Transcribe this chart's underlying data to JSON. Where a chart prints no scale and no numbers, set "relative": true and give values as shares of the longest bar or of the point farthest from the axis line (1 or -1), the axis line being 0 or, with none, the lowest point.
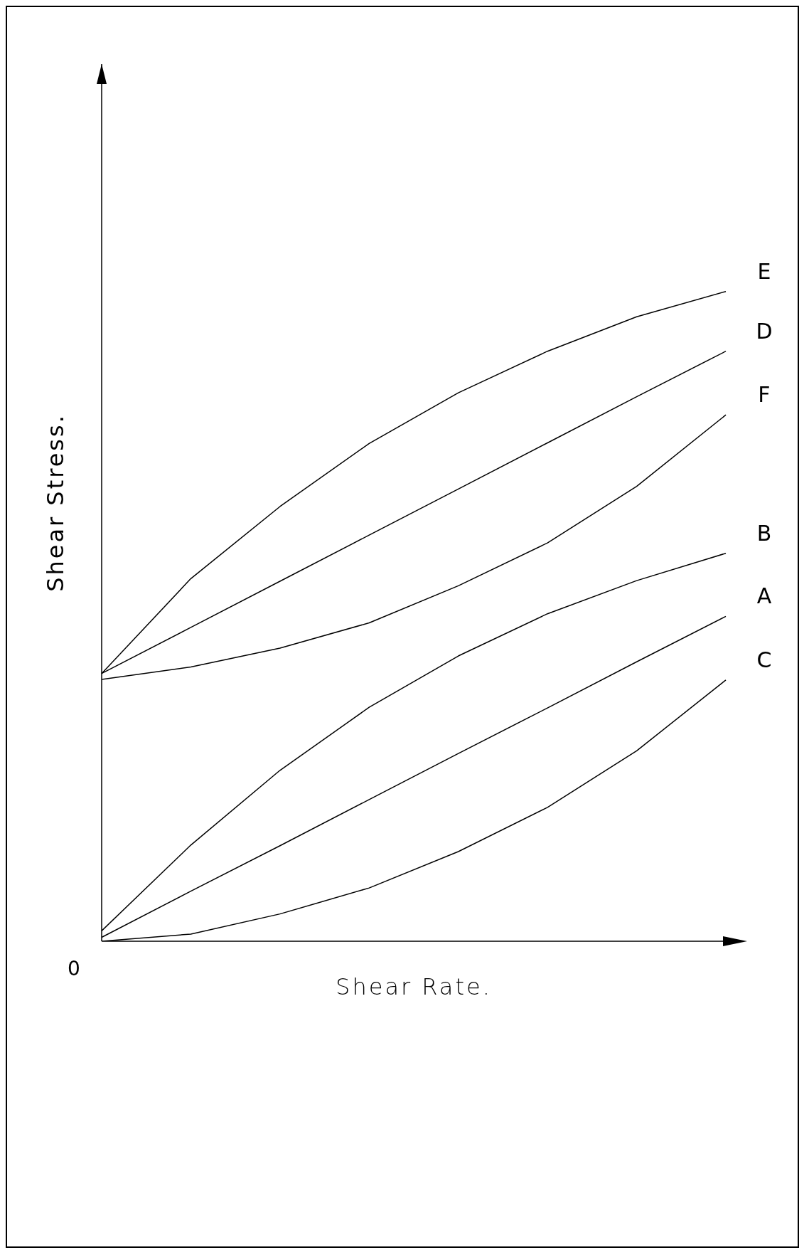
{
  "chart_data": {
    "type": "line",
    "relative": true,
    "xlabel": "Shear Rate.",
    "ylabel": "Shear Stress.",
    "annotations": [
      "0"
    ],
    "categories": [
      null,
      null,
      null,
      null,
      null,
      null,
      null,
      null
    ],
    "marker": "none",
    "line_style": "solid",
    "grid": false,
    "legend": false,
    "series": [
      {
        "name": "E",
        "color": "#000000",
        "values": [
          0.412,
          0.558,
          0.669,
          0.766,
          0.844,
          0.908,
          0.961,
          1.0
        ]
      },
      {
        "name": "D",
        "color": "#000000",
        "values": [
          0.412,
          0.483,
          0.554,
          0.625,
          0.696,
          0.767,
          0.838,
          0.908
        ]
      },
      {
        "name": "F",
        "color": "#000000",
        "values": [
          0.403,
          0.422,
          0.451,
          0.49,
          0.547,
          0.613,
          0.7,
          0.81
        ]
      },
      {
        "name": "B",
        "color": "#000000",
        "values": [
          0.016,
          0.148,
          0.263,
          0.36,
          0.439,
          0.504,
          0.555,
          0.597
        ]
      },
      {
        "name": "A",
        "color": "#000000",
        "values": [
          0.006,
          0.077,
          0.147,
          0.218,
          0.289,
          0.359,
          0.43,
          0.5
        ]
      },
      {
        "name": "C",
        "color": "#000000",
        "values": [
          0,
          0.011,
          0.042,
          0.082,
          0.138,
          0.206,
          0.293,
          0.402
        ]
      }
    ]
  }
}
